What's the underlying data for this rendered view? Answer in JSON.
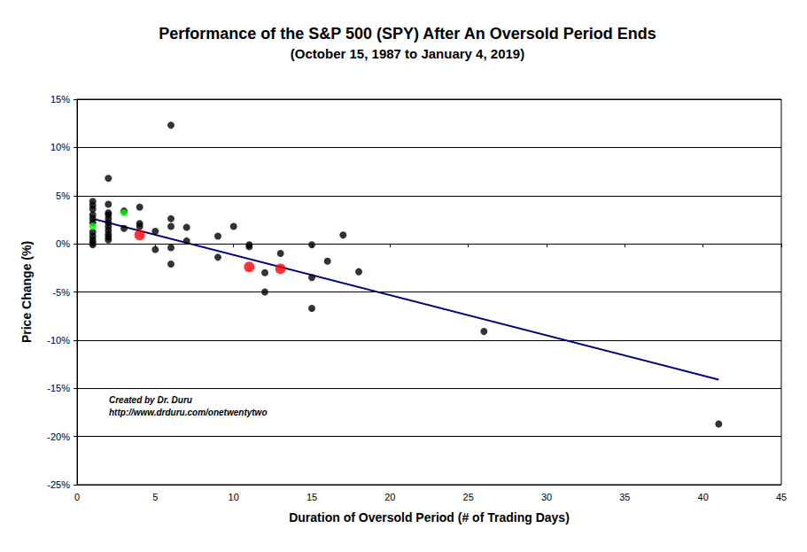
{
  "chart_data": {
    "type": "scatter",
    "title": "Performance of the S&P 500 (SPY) After An Oversold Period Ends",
    "subtitle": "(October 15, 1987 to January 4, 2019)",
    "x_label": "Duration of Oversold Period (# of Trading Days)",
    "y_label": "Price Change (%)",
    "annotations": [
      "Created by Dr. Duru",
      "http://www.drduru.com/onetwentytwo"
    ],
    "xlim": [
      0,
      45
    ],
    "xticks": [
      0,
      5,
      10,
      15,
      20,
      25,
      30,
      35,
      40,
      45
    ],
    "ylim": [
      -25,
      15
    ],
    "yticks": [
      {
        "value": -25,
        "label": "-25%"
      },
      {
        "value": -20,
        "label": "-20%"
      },
      {
        "value": -15,
        "label": "-15%"
      },
      {
        "value": -10,
        "label": "-10%"
      },
      {
        "value": -5,
        "label": "-5%"
      },
      {
        "value": 0,
        "label": "0%"
      },
      {
        "value": 5,
        "label": "5%"
      },
      {
        "value": 10,
        "label": "10%"
      },
      {
        "value": 15,
        "label": "15%"
      }
    ],
    "grid": true,
    "series": [
      {
        "type": "scatter",
        "color": "#000000",
        "marker": "circle",
        "x": [
          1,
          1,
          1,
          1,
          1,
          1,
          1,
          1,
          1,
          1,
          1,
          2,
          2,
          2,
          2,
          2,
          2,
          2,
          2,
          2,
          2,
          2,
          3,
          3,
          4,
          4,
          4,
          5,
          5,
          6,
          6,
          6,
          6,
          6,
          7,
          7,
          9,
          9,
          10,
          11,
          11,
          12,
          12,
          13,
          15,
          15,
          15,
          16,
          17,
          18,
          26,
          41
        ],
        "values": [
          4.4,
          4.0,
          3.6,
          3.0,
          2.6,
          2.2,
          1.2,
          0.8,
          0.4,
          0.1,
          -0.1,
          6.8,
          4.1,
          3.2,
          3.0,
          2.6,
          2.2,
          1.8,
          1.4,
          1.0,
          0.7,
          0.4,
          3.4,
          1.6,
          3.8,
          2.1,
          1.8,
          1.3,
          -0.6,
          12.3,
          2.6,
          1.8,
          -0.4,
          -2.1,
          1.7,
          0.3,
          0.8,
          -1.4,
          1.8,
          -0.1,
          -0.3,
          -3.0,
          -5.0,
          -1.0,
          -0.1,
          -3.5,
          -6.7,
          -1.8,
          0.9,
          -2.9,
          -9.1,
          -18.7
        ]
      },
      {
        "type": "scatter",
        "color": "#00ff00",
        "marker": "circle",
        "x": [
          1,
          3
        ],
        "values": [
          1.8,
          3.2
        ]
      },
      {
        "type": "scatter",
        "color": "#ff0000",
        "marker": "circle",
        "x": [
          4,
          11,
          13
        ],
        "values": [
          0.9,
          -2.4,
          -2.6
        ]
      },
      {
        "type": "line",
        "color": "#000080",
        "line_style": "solid",
        "x": [
          1,
          41
        ],
        "values": [
          2.6,
          -14.1
        ]
      }
    ]
  }
}
